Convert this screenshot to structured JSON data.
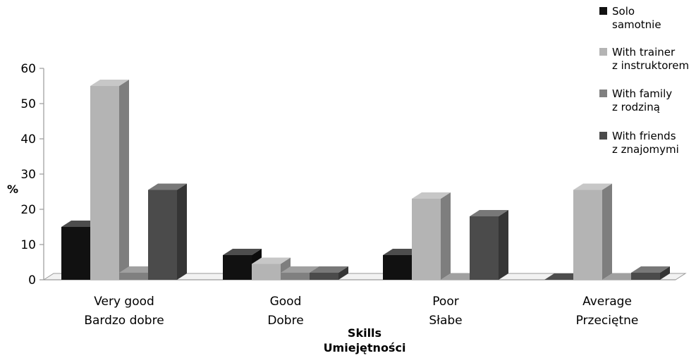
{
  "chart_data": {
    "type": "bar",
    "title": "",
    "xlabel": "Skills",
    "xlabel_2": "Umiejętności",
    "ylabel": "%",
    "ylim": [
      0,
      60
    ],
    "yticks": [
      "0",
      "10",
      "20",
      "30",
      "40",
      "50",
      "60"
    ],
    "categories": [
      {
        "label": "Very good",
        "label_2": "Bardzo dobre"
      },
      {
        "label": "Good",
        "label_2": "Dobre"
      },
      {
        "label": "Poor",
        "label_2": "Słabe"
      },
      {
        "label": "Average",
        "label_2": "Przeciętne"
      }
    ],
    "series": [
      {
        "name": "Solo",
        "name_2": "samotnie",
        "color": "#111111",
        "values": [
          15,
          7,
          7,
          0
        ]
      },
      {
        "name": "With trainer",
        "name_2": "z instruktorem",
        "color": "#b4b4b4",
        "values": [
          55,
          4.5,
          23,
          25.5
        ]
      },
      {
        "name": "With family",
        "name_2": "z rodziną",
        "color": "#808080",
        "values": [
          2,
          2,
          0,
          0
        ]
      },
      {
        "name": "With friends",
        "name_2": "z znajomymi",
        "color": "#4b4b4b",
        "values": [
          25.5,
          2,
          18,
          2
        ]
      }
    ],
    "grid": false,
    "legend_position": "top-right",
    "style": "3d-column"
  }
}
